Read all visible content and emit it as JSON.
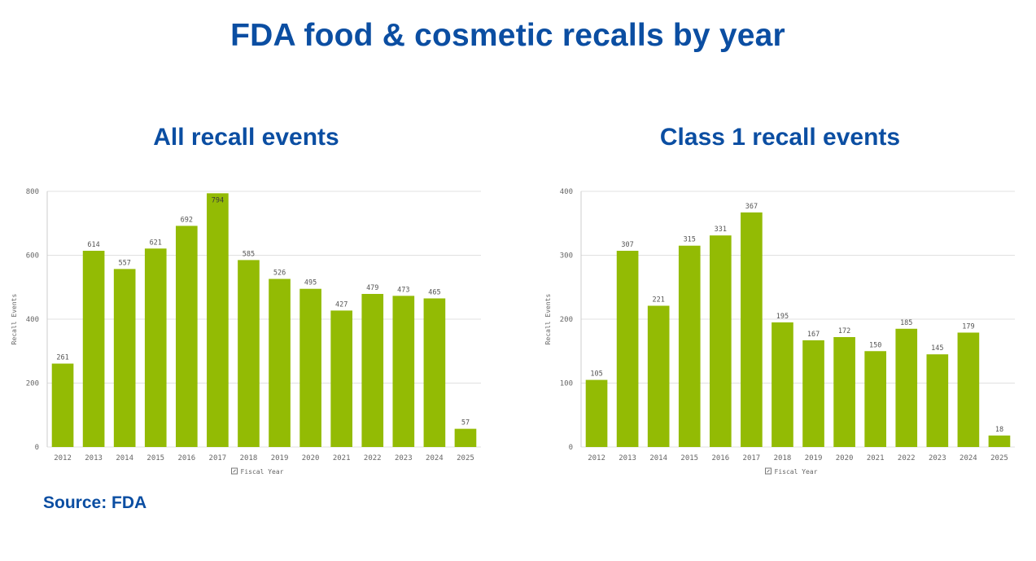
{
  "header": {
    "title": "FDA food & cosmetic recalls by year"
  },
  "footer": {
    "source": "Source: FDA"
  },
  "colors": {
    "bar": "#93bb04",
    "title": "#0b4ea2",
    "grid": "#e0e0e0",
    "axis_text": "#666666"
  },
  "chart_data": [
    {
      "type": "bar",
      "title": "All recall events",
      "xlabel": "Fiscal Year",
      "ylabel": "Recall Events",
      "ylim": [
        0,
        800
      ],
      "yticks": [
        0,
        200,
        400,
        600,
        800
      ],
      "grid": true,
      "categories": [
        "2012",
        "2013",
        "2014",
        "2015",
        "2016",
        "2017",
        "2018",
        "2019",
        "2020",
        "2021",
        "2022",
        "2023",
        "2024",
        "2025"
      ],
      "values": [
        261,
        614,
        557,
        621,
        692,
        794,
        585,
        526,
        495,
        427,
        479,
        473,
        465,
        57
      ]
    },
    {
      "type": "bar",
      "title": "Class 1 recall events",
      "xlabel": "Fiscal Year",
      "ylabel": "Recall Events",
      "ylim": [
        0,
        400
      ],
      "yticks": [
        0,
        100,
        200,
        300,
        400
      ],
      "grid": true,
      "categories": [
        "2012",
        "2013",
        "2014",
        "2015",
        "2016",
        "2017",
        "2018",
        "2019",
        "2020",
        "2021",
        "2022",
        "2023",
        "2024",
        "2025"
      ],
      "values": [
        105,
        307,
        221,
        315,
        331,
        367,
        195,
        167,
        172,
        150,
        185,
        145,
        179,
        18
      ]
    }
  ]
}
